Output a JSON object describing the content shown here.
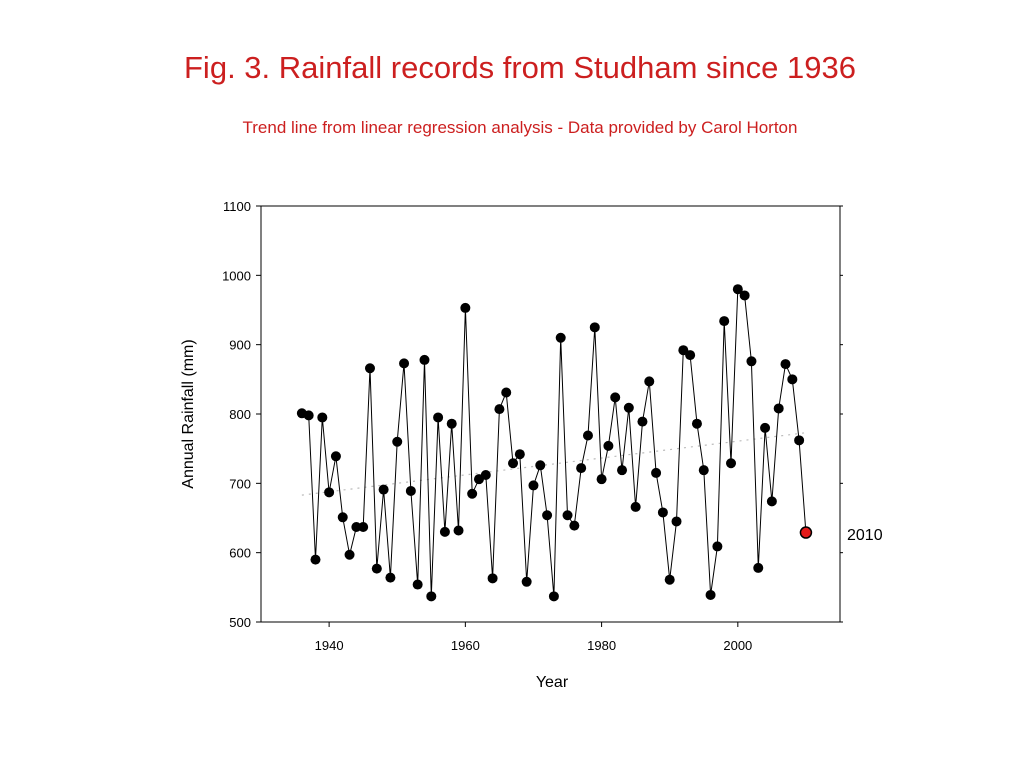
{
  "page": {
    "title": "Fig. 3. Rainfall records from Studham since 1936",
    "subtitle": "Trend line from linear regression analysis  - Data provided by Carol Horton"
  },
  "chart_data": {
    "type": "line",
    "xlabel": "Year",
    "ylabel": "Annual Rainfall (mm)",
    "xlim": [
      1930,
      2015
    ],
    "ylim": [
      500,
      1100
    ],
    "xticks": [
      1940,
      1960,
      1980,
      2000
    ],
    "yticks": [
      500,
      600,
      700,
      800,
      900,
      1000,
      1100
    ],
    "grid": false,
    "trend_line": {
      "x": [
        1936,
        2010
      ],
      "y": [
        683,
        773
      ],
      "style": "dotted"
    },
    "highlight": {
      "x": 2010,
      "y": 629,
      "label": "2010",
      "color": "#e41a1a"
    },
    "series": [
      {
        "x": [
          1936,
          1937,
          1938,
          1939,
          1940,
          1941,
          1942,
          1943,
          1944,
          1945,
          1946,
          1947,
          1948,
          1949,
          1950,
          1951,
          1952,
          1953,
          1954,
          1955,
          1956,
          1957,
          1958,
          1959,
          1960,
          1961,
          1962,
          1963,
          1964,
          1965,
          1966,
          1967,
          1968,
          1969,
          1970,
          1971,
          1972,
          1973,
          1974,
          1975,
          1976,
          1977,
          1978,
          1979,
          1980,
          1981,
          1982,
          1983,
          1984,
          1985,
          1986,
          1987,
          1988,
          1989,
          1990,
          1991,
          1992,
          1993,
          1994,
          1995,
          1996,
          1997,
          1998,
          1999,
          2000,
          2001,
          2002,
          2003,
          2004,
          2005,
          2006,
          2007,
          2008,
          2009,
          2010
        ],
        "y": [
          801,
          798,
          590,
          795,
          687,
          739,
          651,
          597,
          637,
          637,
          866,
          577,
          691,
          564,
          760,
          873,
          689,
          554,
          878,
          537,
          795,
          630,
          786,
          632,
          953,
          685,
          706,
          712,
          563,
          807,
          831,
          729,
          742,
          558,
          697,
          726,
          654,
          537,
          910,
          654,
          639,
          722,
          769,
          925,
          706,
          754,
          824,
          719,
          809,
          666,
          789,
          847,
          715,
          658,
          561,
          645,
          892,
          885,
          786,
          719,
          539,
          609,
          934,
          729,
          980,
          971,
          876,
          578,
          780,
          674,
          808,
          872,
          850,
          762,
          629
        ]
      }
    ]
  }
}
